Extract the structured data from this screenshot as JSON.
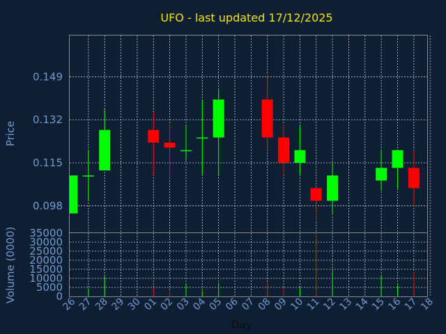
{
  "chart_data": {
    "type": "candlestick",
    "title": "UFO - last updated 17/12/2025",
    "price_axis": {
      "label": "Price",
      "ticks": [
        "0.149",
        "0.132",
        "0.115",
        "0.098"
      ],
      "tick_values": [
        0.149,
        0.132,
        0.115,
        0.098
      ],
      "ylim": [
        0.0875,
        0.1653
      ]
    },
    "volume_axis": {
      "label": "Volume (0000)",
      "ticks": [
        "35000",
        "30000",
        "25000",
        "20000",
        "15000",
        "10000",
        "5000",
        "0"
      ],
      "tick_values": [
        35000,
        30000,
        25000,
        20000,
        15000,
        10000,
        5000,
        0
      ],
      "ylim": [
        0,
        35000
      ]
    },
    "xlabel": "Day",
    "x_ticks": [
      "26",
      "27",
      "28",
      "29",
      "30",
      "01",
      "02",
      "03",
      "04",
      "05",
      "06",
      "07",
      "08",
      "09",
      "10",
      "11",
      "12",
      "13",
      "14",
      "15",
      "16",
      "17",
      "18"
    ],
    "grid": true,
    "colors": {
      "up": "#00ff00",
      "down": "#ff0000"
    },
    "candles": [
      {
        "day": "26",
        "open": 0.095,
        "close": 0.11,
        "high": 0.11,
        "low": 0.095,
        "volume": 0
      },
      {
        "day": "27",
        "open": 0.11,
        "close": 0.11,
        "high": 0.12,
        "low": 0.1,
        "volume": 4500
      },
      {
        "day": "28",
        "open": 0.112,
        "close": 0.128,
        "high": 0.136,
        "low": 0.112,
        "volume": 11000
      },
      {
        "day": "01",
        "open": 0.128,
        "close": 0.123,
        "high": 0.135,
        "low": 0.11,
        "volume": 5000
      },
      {
        "day": "02",
        "open": 0.123,
        "close": 0.121,
        "high": 0.13,
        "low": 0.109,
        "volume": 3000
      },
      {
        "day": "03",
        "open": 0.12,
        "close": 0.12,
        "high": 0.13,
        "low": 0.116,
        "volume": 7000
      },
      {
        "day": "04",
        "open": 0.125,
        "close": 0.125,
        "high": 0.14,
        "low": 0.11,
        "volume": 3000
      },
      {
        "day": "05",
        "open": 0.125,
        "close": 0.14,
        "high": 0.144,
        "low": 0.11,
        "volume": 7500
      },
      {
        "day": "08",
        "open": 0.14,
        "close": 0.125,
        "high": 0.15,
        "low": 0.12,
        "volume": 8000
      },
      {
        "day": "09",
        "open": 0.125,
        "close": 0.115,
        "high": 0.13,
        "low": 0.11,
        "volume": 5000
      },
      {
        "day": "10",
        "open": 0.115,
        "close": 0.12,
        "high": 0.13,
        "low": 0.11,
        "volume": 5000
      },
      {
        "day": "11",
        "open": 0.105,
        "close": 0.1,
        "high": 0.105,
        "low": 0.092,
        "volume": 35000
      },
      {
        "day": "12",
        "open": 0.1,
        "close": 0.11,
        "high": 0.115,
        "low": 0.095,
        "volume": 14000
      },
      {
        "day": "15",
        "open": 0.108,
        "close": 0.113,
        "high": 0.12,
        "low": 0.104,
        "volume": 12000
      },
      {
        "day": "16",
        "open": 0.113,
        "close": 0.12,
        "high": 0.12,
        "low": 0.105,
        "volume": 6000
      },
      {
        "day": "17",
        "open": 0.113,
        "close": 0.105,
        "high": 0.12,
        "low": 0.098,
        "volume": 13500
      }
    ]
  }
}
